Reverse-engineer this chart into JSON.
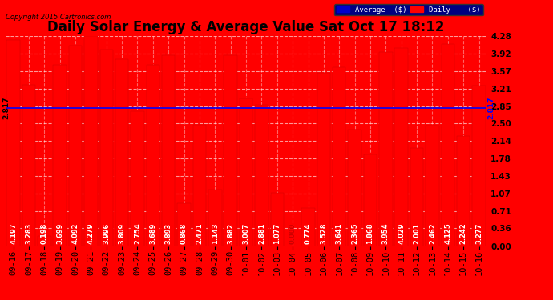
{
  "title": "Daily Solar Energy & Average Value Sat Oct 17 18:12",
  "copyright": "Copyright 2015 Cartronics.com",
  "categories": [
    "09-16",
    "09-17",
    "09-18",
    "09-19",
    "09-20",
    "09-21",
    "09-22",
    "09-23",
    "09-24",
    "09-25",
    "09-26",
    "09-27",
    "09-28",
    "09-29",
    "09-30",
    "10-01",
    "10-02",
    "10-03",
    "10-04",
    "10-05",
    "10-06",
    "10-07",
    "10-08",
    "10-09",
    "10-10",
    "10-11",
    "10-12",
    "10-13",
    "10-14",
    "10-15",
    "10-16"
  ],
  "values": [
    4.197,
    3.283,
    0.198,
    3.699,
    4.092,
    4.279,
    3.996,
    3.809,
    2.754,
    3.689,
    3.893,
    0.868,
    2.471,
    1.143,
    3.882,
    3.007,
    2.881,
    1.077,
    0.0,
    0.774,
    3.528,
    3.641,
    2.365,
    1.868,
    3.954,
    4.029,
    2.001,
    2.462,
    4.125,
    2.242,
    3.277
  ],
  "average": 2.817,
  "bar_color": "#ff0000",
  "average_line_color": "#0000ff",
  "ylim_min": 0,
  "ylim_max": 4.28,
  "yticks": [
    0.0,
    0.36,
    0.71,
    1.07,
    1.43,
    1.78,
    2.14,
    2.5,
    2.85,
    3.21,
    3.57,
    3.92,
    4.28
  ],
  "background_color": "#ff0000",
  "plot_bg_color": "#ff0000",
  "grid_color": "#cccccc",
  "title_fontsize": 12,
  "tick_fontsize": 7.5,
  "value_label_fontsize": 6,
  "bar_edge_color": "#cc0000",
  "legend_avg_color": "#0000cd",
  "legend_daily_color": "#ff0000",
  "average_label": "2.817",
  "legend_bg_color": "#000080",
  "legend_text_color": "#ffffff"
}
